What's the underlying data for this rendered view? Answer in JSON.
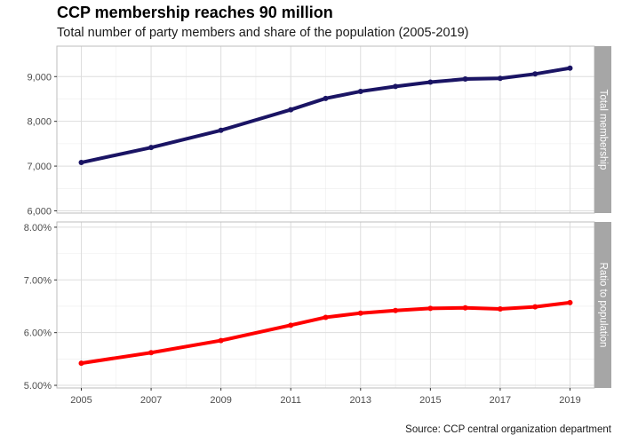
{
  "title": "CCP membership reaches 90 million",
  "subtitle": "Total number of party members and share of the population (2005-2019)",
  "caption": "Source: CCP central organization department",
  "chart_data": [
    {
      "type": "line",
      "facet_label": "Total membership",
      "x": [
        2005,
        2007,
        2009,
        2011,
        2012,
        2013,
        2014,
        2015,
        2016,
        2017,
        2018,
        2019
      ],
      "values": [
        7080,
        7415,
        7800,
        8260,
        8513,
        8669,
        8780,
        8876,
        8945,
        8960,
        9059,
        9190
      ],
      "color": "#1a1464",
      "xlim": [
        2004.3,
        2019.7
      ],
      "ylim": [
        5950,
        9680
      ],
      "y_ticks": [
        6000,
        7000,
        8000,
        9000
      ],
      "y_tick_labels": [
        "6,000",
        "7,000",
        "8,000",
        "9,000"
      ],
      "grid": true
    },
    {
      "type": "line",
      "facet_label": "Ratio to population",
      "x": [
        2005,
        2007,
        2009,
        2011,
        2012,
        2013,
        2014,
        2015,
        2016,
        2017,
        2018,
        2019
      ],
      "values": [
        5.42,
        5.62,
        5.85,
        6.14,
        6.29,
        6.37,
        6.42,
        6.46,
        6.47,
        6.45,
        6.49,
        6.57
      ],
      "color": "#ff0000",
      "xlim": [
        2004.3,
        2019.7
      ],
      "ylim": [
        4.95,
        8.1
      ],
      "y_ticks": [
        5,
        6,
        7,
        8
      ],
      "y_tick_labels": [
        "5.00%",
        "6.00%",
        "7.00%",
        "8.00%"
      ],
      "grid": true
    }
  ],
  "x_ticks": [
    2005,
    2007,
    2009,
    2011,
    2013,
    2015,
    2017,
    2019
  ],
  "x_tick_labels": [
    "2005",
    "2007",
    "2009",
    "2011",
    "2013",
    "2015",
    "2017",
    "2019"
  ]
}
